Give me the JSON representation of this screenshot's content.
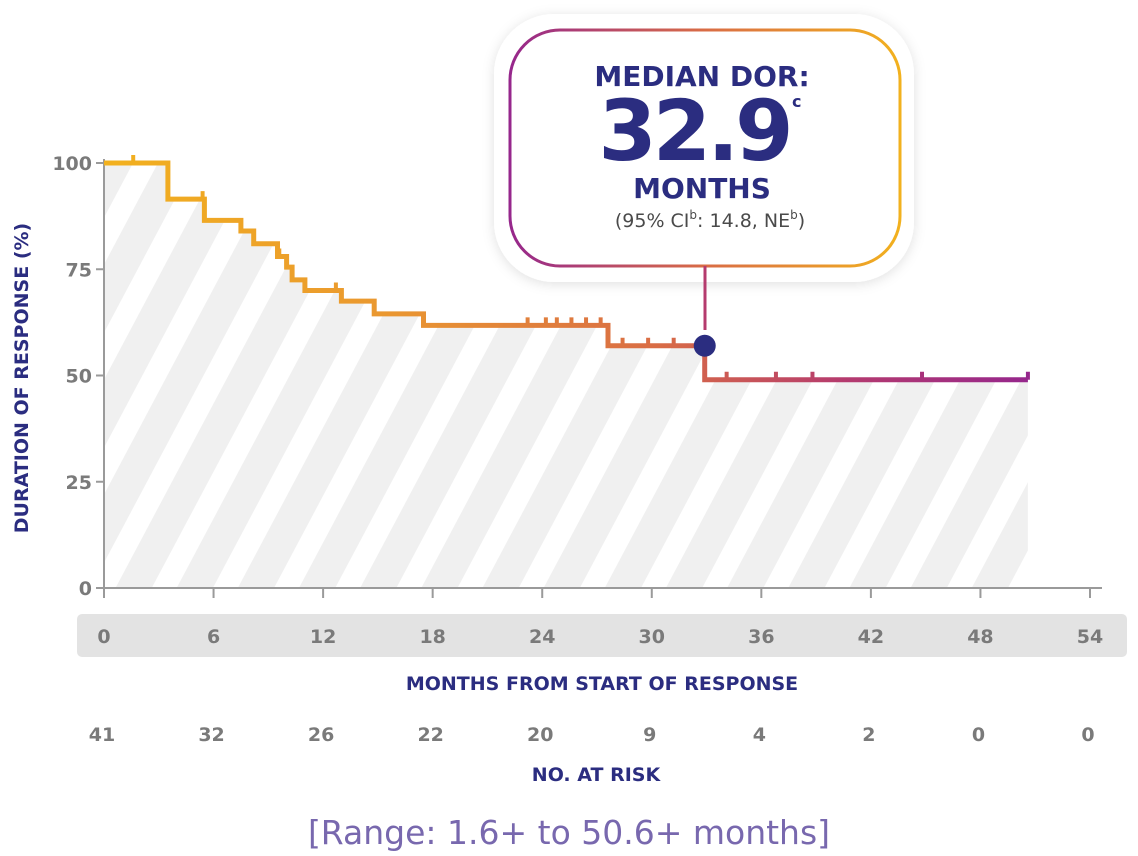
{
  "chart_data": {
    "type": "line",
    "subtype": "kaplan-meier-step",
    "ylabel": "DURATION OF RESPONSE (%)",
    "xlabel": "MONTHS FROM START OF RESPONSE",
    "xlim": [
      0,
      54
    ],
    "ylim": [
      0,
      100
    ],
    "x_ticks": [
      0,
      6,
      12,
      18,
      24,
      30,
      36,
      42,
      48,
      54
    ],
    "y_ticks": [
      0,
      25,
      50,
      75,
      100
    ],
    "series": [
      {
        "steps": [
          [
            0,
            100
          ],
          [
            3.5,
            100
          ],
          [
            3.5,
            91.5
          ],
          [
            5.5,
            91.5
          ],
          [
            5.5,
            86.5
          ],
          [
            7.5,
            86.5
          ],
          [
            7.5,
            84
          ],
          [
            8.2,
            84
          ],
          [
            8.2,
            81
          ],
          [
            9.5,
            81
          ],
          [
            9.5,
            78
          ],
          [
            10,
            78
          ],
          [
            10,
            75.5
          ],
          [
            10.3,
            75.5
          ],
          [
            10.3,
            72.5
          ],
          [
            11,
            72.5
          ],
          [
            11,
            70
          ],
          [
            13,
            70
          ],
          [
            13,
            67.5
          ],
          [
            14.8,
            67.5
          ],
          [
            14.8,
            64.5
          ],
          [
            17.5,
            64.5
          ],
          [
            17.5,
            61.8
          ],
          [
            27.6,
            61.8
          ],
          [
            27.6,
            57
          ],
          [
            32.9,
            57
          ],
          [
            32.9,
            49
          ],
          [
            50.6,
            49
          ]
        ],
        "censor_x": [
          1.6,
          3.5,
          5.4,
          7.5,
          9.6,
          12.7,
          23.2,
          24.2,
          24.8,
          25.6,
          26.4,
          27.2,
          28.4,
          29.8,
          31.2,
          34.1,
          36.8,
          38.8,
          44.8,
          50.6
        ]
      }
    ],
    "median_point": {
      "x": 32.9,
      "y": 57
    },
    "number_at_risk": {
      "label": "NO. AT RISK",
      "values": [
        "41",
        "32",
        "26",
        "22",
        "20",
        "9",
        "4",
        "2",
        "0",
        "0"
      ]
    },
    "gradient_colors": [
      "#f2b11e",
      "#ea9830",
      "#d96c45",
      "#b53b6e",
      "#96278c"
    ],
    "accent_color": "#2b2d80"
  },
  "callout": {
    "line1": "MEDIAN DOR:",
    "value": "32.9",
    "value_sup": "c",
    "line3": "MONTHS",
    "ci_prefix": "(95% CI",
    "ci_sup1": "b",
    "ci_middle": ": 14.8, NE",
    "ci_sup2": "b",
    "ci_suffix": ")"
  },
  "footnote": "[Range: 1.6+ to 50.6+ months]"
}
